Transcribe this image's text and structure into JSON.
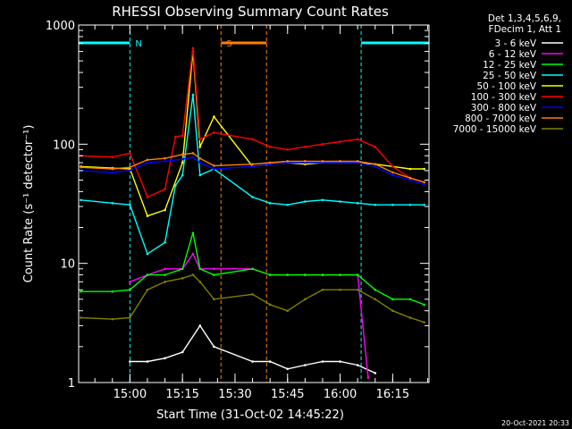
{
  "chart_data": {
    "type": "line",
    "title": "RHESSI Observing Summary Count Rates",
    "xlabel": "Start Time (31-Oct-02 14:45:22)",
    "ylabel": "Count Rate (s⁻¹ detector⁻¹)",
    "y_scale": "log",
    "ylim": [
      1,
      1000
    ],
    "y_ticks": [
      1,
      10,
      100,
      1000
    ],
    "y_tick_labels": [
      "1",
      "10",
      "100",
      "1000"
    ],
    "xlim": [
      "14:45:22",
      "16:25:22"
    ],
    "x_ticks": [
      "15:00",
      "15:15",
      "15:30",
      "15:45",
      "16:00",
      "16:15"
    ],
    "legend_header": [
      "Det 1,3,4,5,6,9,",
      "FDecim 1, Att 1"
    ],
    "legend_position": "outside-right",
    "timestamp": "20-Oct-2021 20:33",
    "annotations": [
      {
        "text": "N",
        "x": "15:00",
        "color": "#00ffff"
      },
      {
        "text": "S",
        "x": "15:26",
        "color": "#ff8000"
      }
    ],
    "series": [
      {
        "name": "3 - 6 keV",
        "color": "#ffffff",
        "x": [
          "15:00",
          "15:05",
          "15:10",
          "15:15",
          "15:20",
          "15:24",
          "15:35",
          "15:40",
          "15:45",
          "15:50",
          "15:55",
          "16:00",
          "16:05",
          "16:10"
        ],
        "values": [
          1.5,
          1.5,
          1.6,
          1.8,
          3.0,
          2.0,
          1.5,
          1.5,
          1.3,
          1.4,
          1.5,
          1.5,
          1.4,
          1.2
        ]
      },
      {
        "name": "6 - 12 keV",
        "color": "#ff00ff",
        "x": [
          "15:00",
          "15:05",
          "15:10",
          "15:15",
          "15:18",
          "15:20",
          "15:24",
          "15:35",
          "15:40",
          "15:45",
          "15:50",
          "15:55",
          "16:00",
          "16:05",
          "16:08"
        ],
        "values": [
          7,
          8,
          9,
          9,
          12,
          9,
          9,
          9,
          8,
          8,
          8,
          8,
          8,
          8,
          1.1
        ]
      },
      {
        "name": "12 - 25 keV",
        "color": "#00ff00",
        "x": [
          "14:46",
          "14:55",
          "15:00",
          "15:05",
          "15:10",
          "15:15",
          "15:18",
          "15:20",
          "15:24",
          "15:35",
          "15:40",
          "15:45",
          "15:50",
          "15:55",
          "16:00",
          "16:05",
          "16:10",
          "16:15",
          "16:20",
          "16:24"
        ],
        "values": [
          5.8,
          5.8,
          6,
          8,
          8,
          9,
          18,
          9,
          8,
          9,
          8,
          8,
          8,
          8,
          8,
          8,
          6,
          5,
          5,
          4.5
        ]
      },
      {
        "name": "25 - 50 keV",
        "color": "#00ffff",
        "x": [
          "14:46",
          "14:55",
          "15:00",
          "15:05",
          "15:10",
          "15:13",
          "15:15",
          "15:18",
          "15:20",
          "15:24",
          "15:35",
          "15:40",
          "15:45",
          "15:50",
          "15:55",
          "16:00",
          "16:05",
          "16:10",
          "16:15",
          "16:20",
          "16:24"
        ],
        "values": [
          34,
          32,
          31,
          12,
          15,
          45,
          55,
          260,
          55,
          62,
          36,
          32,
          31,
          33,
          34,
          33,
          32,
          31,
          31,
          31,
          31
        ]
      },
      {
        "name": "50 - 100 keV",
        "color": "#ffff00",
        "x": [
          "14:46",
          "14:55",
          "15:00",
          "15:05",
          "15:10",
          "15:15",
          "15:18",
          "15:20",
          "15:24",
          "15:35",
          "15:40",
          "15:45",
          "15:50",
          "15:55",
          "16:00",
          "16:05",
          "16:10",
          "16:15",
          "16:20",
          "16:24"
        ],
        "values": [
          65,
          63,
          62,
          25,
          28,
          70,
          600,
          95,
          170,
          65,
          68,
          70,
          68,
          70,
          70,
          70,
          68,
          65,
          62,
          62
        ]
      },
      {
        "name": "100 - 300 keV",
        "color": "#ff0000",
        "x": [
          "14:46",
          "14:55",
          "15:00",
          "15:05",
          "15:10",
          "15:13",
          "15:15",
          "15:18",
          "15:20",
          "15:24",
          "15:35",
          "15:40",
          "15:45",
          "15:50",
          "15:55",
          "16:00",
          "16:05",
          "16:10",
          "16:15",
          "16:20",
          "16:24"
        ],
        "values": [
          80,
          78,
          84,
          36,
          42,
          115,
          118,
          640,
          110,
          125,
          110,
          95,
          90,
          95,
          100,
          105,
          110,
          95,
          65,
          52,
          48
        ]
      },
      {
        "name": "300 - 800 keV",
        "color": "#0000ff",
        "x": [
          "14:46",
          "14:55",
          "15:00",
          "15:05",
          "15:10",
          "15:15",
          "15:18",
          "15:20",
          "15:24",
          "15:35",
          "15:40",
          "15:45",
          "15:50",
          "15:55",
          "16:00",
          "16:05",
          "16:10",
          "16:15",
          "16:20",
          "16:24"
        ],
        "values": [
          60,
          58,
          60,
          70,
          72,
          75,
          78,
          70,
          62,
          65,
          68,
          70,
          70,
          70,
          70,
          70,
          65,
          55,
          50,
          46
        ]
      },
      {
        "name": "800 - 7000 keV",
        "color": "#ff8000",
        "x": [
          "14:46",
          "14:55",
          "15:00",
          "15:05",
          "15:10",
          "15:15",
          "15:18",
          "15:20",
          "15:24",
          "15:35",
          "15:40",
          "15:45",
          "15:50",
          "15:55",
          "16:00",
          "16:05",
          "16:10",
          "16:15",
          "16:20",
          "16:24"
        ],
        "values": [
          64,
          62,
          64,
          74,
          76,
          82,
          84,
          76,
          66,
          68,
          70,
          72,
          72,
          72,
          72,
          72,
          68,
          58,
          52,
          48
        ]
      },
      {
        "name": "7000 - 15000 keV",
        "color": "#808000",
        "x": [
          "14:46",
          "14:55",
          "15:00",
          "15:05",
          "15:10",
          "15:15",
          "15:18",
          "15:20",
          "15:24",
          "15:35",
          "15:40",
          "15:45",
          "15:50",
          "15:55",
          "16:00",
          "16:05",
          "16:10",
          "16:15",
          "16:20",
          "16:24"
        ],
        "values": [
          3.5,
          3.4,
          3.5,
          6,
          7,
          7.5,
          8,
          7,
          5,
          5.5,
          4.5,
          4,
          5,
          6,
          6,
          6,
          5,
          4,
          3.5,
          3.2
        ]
      }
    ],
    "regions": [
      {
        "label": "night",
        "color": "#00ffff",
        "ranges": [
          [
            "14:45:22",
            "15:00"
          ],
          [
            "16:06",
            "16:25:22"
          ]
        ]
      },
      {
        "label": "saa",
        "color": "#ff8000",
        "ranges": [
          [
            "15:26",
            "15:39"
          ]
        ]
      }
    ]
  }
}
